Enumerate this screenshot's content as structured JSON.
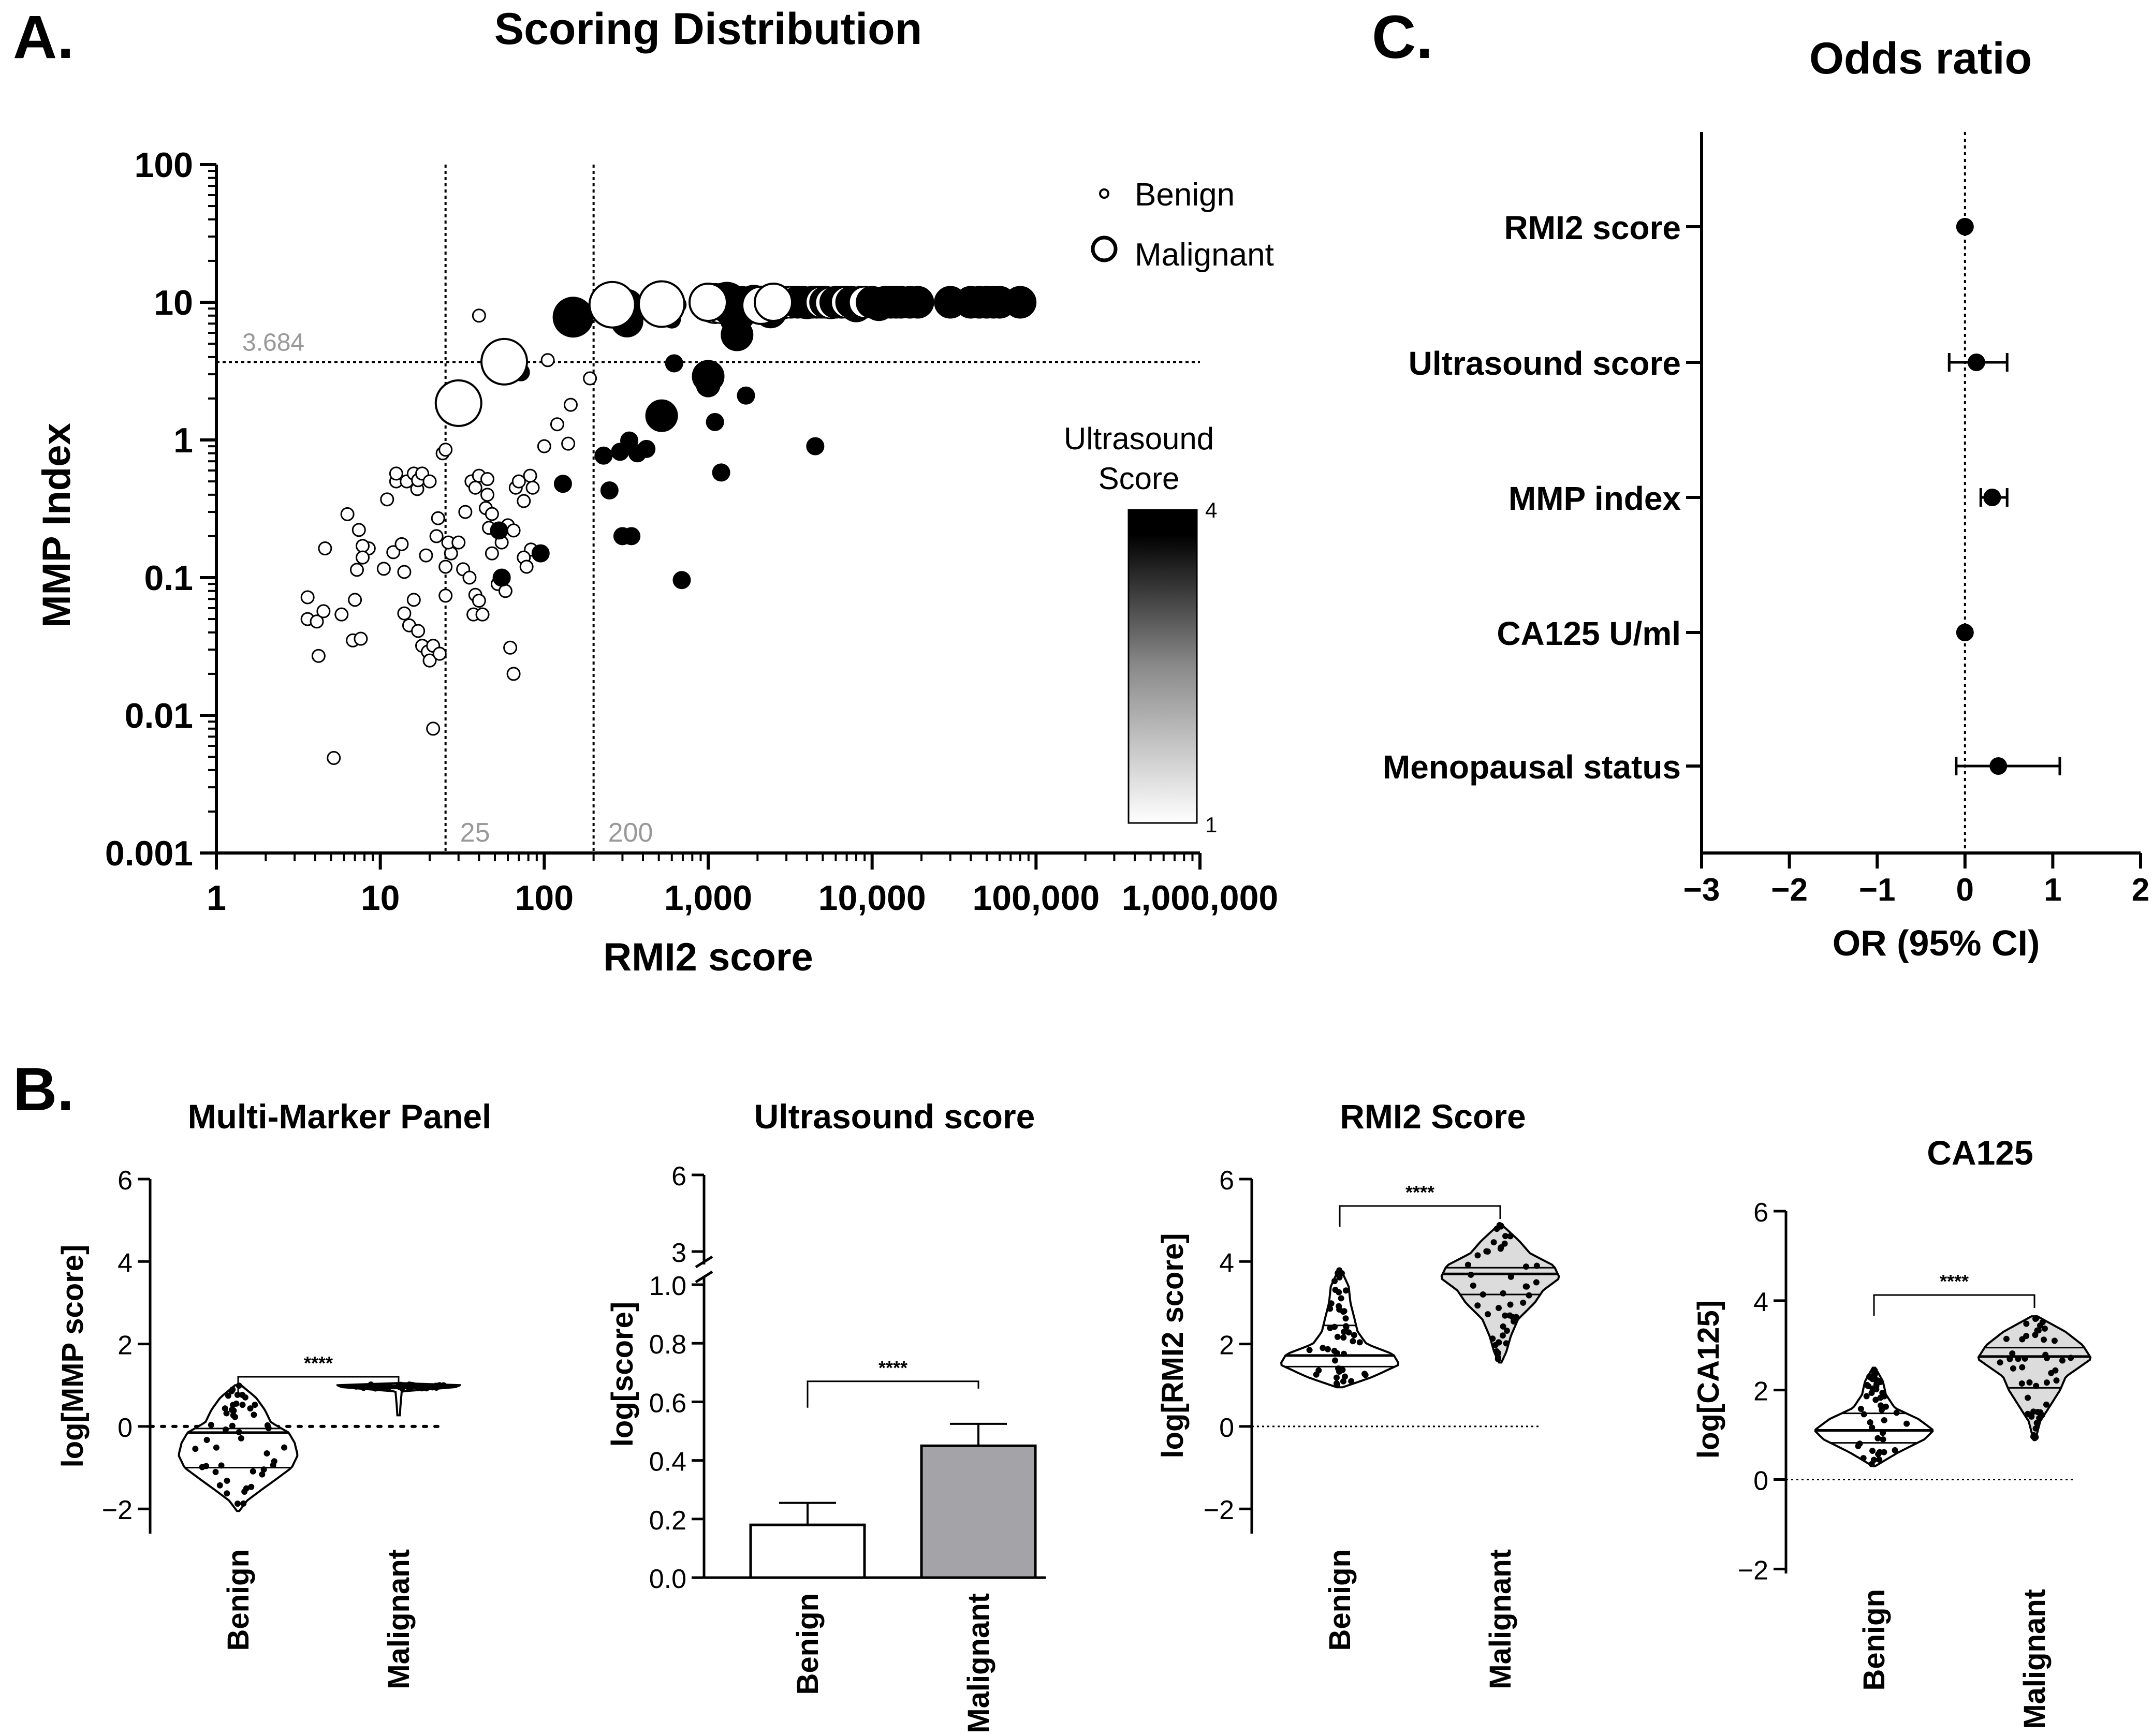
{
  "panel_letters": {
    "a": "A.",
    "b": "B.",
    "c": "C."
  },
  "chart_data": [
    {
      "id": "scatter",
      "type": "scatter",
      "title": "Scoring Distribution",
      "xlabel": "RMI2 score",
      "ylabel": "MMP Index",
      "xscale": "log",
      "yscale": "log",
      "xlim": [
        1,
        1000000
      ],
      "ylim": [
        0.001,
        100
      ],
      "xticks": [
        {
          "v": 1,
          "label": "1"
        },
        {
          "v": 10,
          "label": "10"
        },
        {
          "v": 100,
          "label": "100"
        },
        {
          "v": 1000,
          "label": "1,000"
        },
        {
          "v": 10000,
          "label": "10,000"
        },
        {
          "v": 100000,
          "label": "100,000"
        },
        {
          "v": 1000000,
          "label": "1,000,000"
        }
      ],
      "yticks": [
        {
          "v": 100,
          "label": "100"
        },
        {
          "v": 10,
          "label": "10"
        },
        {
          "v": 1,
          "label": "1"
        },
        {
          "v": 0.1,
          "label": "0.1"
        },
        {
          "v": 0.01,
          "label": "0.01"
        },
        {
          "v": 0.001,
          "label": "0.001"
        }
      ],
      "threshold_lines": [
        {
          "axis": "y",
          "value": 3.684,
          "label": "3.684"
        },
        {
          "axis": "x",
          "value": 25,
          "label": "25"
        },
        {
          "axis": "x",
          "value": 200,
          "label": "200"
        }
      ],
      "legend": {
        "placement": "top-right",
        "items": [
          {
            "label": "Benign",
            "kind": "small"
          },
          {
            "label": "Malignant",
            "kind": "large"
          }
        ]
      },
      "colorbar": {
        "title_line1": "Ultrasound",
        "title_line2": "Score",
        "min_label": "1",
        "max_label": "4",
        "placement": "right"
      },
      "benign": [
        [
          5.2,
          0.0049
        ],
        [
          4.2,
          0.027
        ],
        [
          3.6,
          0.05
        ],
        [
          4.1,
          0.048
        ],
        [
          3.6,
          0.072
        ],
        [
          4.5,
          0.057
        ],
        [
          5.8,
          0.054
        ],
        [
          4.6,
          0.163
        ],
        [
          6.8,
          0.035
        ],
        [
          7.6,
          0.036
        ],
        [
          7,
          0.069
        ],
        [
          7.2,
          0.114
        ],
        [
          8.5,
          0.163
        ],
        [
          7.8,
          0.17
        ],
        [
          7.8,
          0.14
        ],
        [
          7.4,
          0.222
        ],
        [
          6.3,
          0.289
        ],
        [
          10.5,
          0.116
        ],
        [
          12,
          0.153
        ],
        [
          13.5,
          0.175
        ],
        [
          14,
          0.11
        ],
        [
          14,
          0.055
        ],
        [
          15,
          0.045
        ],
        [
          12.5,
          0.5
        ],
        [
          11,
          0.37
        ],
        [
          12.5,
          0.57
        ],
        [
          14.5,
          0.5
        ],
        [
          16,
          0.57
        ],
        [
          16.8,
          0.44
        ],
        [
          17,
          0.51
        ],
        [
          18,
          0.57
        ],
        [
          20,
          0.5
        ],
        [
          22,
          0.2
        ],
        [
          19,
          0.145
        ],
        [
          16,
          0.069
        ],
        [
          17,
          0.041
        ],
        [
          18,
          0.032
        ],
        [
          19.5,
          0.029
        ],
        [
          21,
          0.032
        ],
        [
          20,
          0.025
        ],
        [
          21,
          0.008
        ],
        [
          23,
          0.028
        ],
        [
          25,
          0.074
        ],
        [
          25,
          0.12
        ],
        [
          27,
          0.15
        ],
        [
          24,
          0.8
        ],
        [
          25,
          0.85
        ],
        [
          22.5,
          0.27
        ],
        [
          26,
          0.18
        ],
        [
          30,
          0.18
        ],
        [
          32,
          0.115
        ],
        [
          35,
          0.1
        ],
        [
          38,
          0.075
        ],
        [
          40,
          0.068
        ],
        [
          37,
          0.054
        ],
        [
          42,
          0.054
        ],
        [
          36,
          0.5
        ],
        [
          40,
          0.55
        ],
        [
          38,
          0.45
        ],
        [
          45,
          0.4
        ],
        [
          44,
          0.32
        ],
        [
          48,
          0.29
        ],
        [
          33,
          0.3
        ],
        [
          46,
          0.23
        ],
        [
          48,
          0.15
        ],
        [
          52,
          0.09
        ],
        [
          55,
          0.18
        ],
        [
          60,
          0.24
        ],
        [
          58,
          0.08
        ],
        [
          62,
          0.031
        ],
        [
          65,
          0.02
        ],
        [
          67,
          0.45
        ],
        [
          70,
          0.5
        ],
        [
          75,
          0.36
        ],
        [
          82,
          0.55
        ],
        [
          83,
          0.16
        ],
        [
          75,
          0.14
        ],
        [
          78,
          0.12
        ],
        [
          85,
          0.45
        ],
        [
          100,
          0.9
        ],
        [
          140,
          0.94
        ],
        [
          145,
          1.8
        ],
        [
          120,
          1.3
        ],
        [
          105,
          3.8
        ],
        [
          190,
          2.8
        ],
        [
          40,
          8
        ],
        [
          65,
          0.22
        ],
        [
          45,
          0.52
        ]
      ],
      "malignant": [
        [
          150,
          7.8,
          4,
          4
        ],
        [
          250,
          9.3,
          1,
          4
        ],
        [
          320,
          9.5,
          4,
          3
        ],
        [
          320,
          7.3,
          4,
          3
        ],
        [
          500,
          9.5,
          1,
          3
        ],
        [
          600,
          7.5,
          4,
          1
        ],
        [
          1000,
          9.7,
          3,
          3
        ],
        [
          1100,
          9.8,
          1,
          4
        ],
        [
          1200,
          9.8,
          1,
          4
        ],
        [
          1300,
          10,
          4,
          4
        ],
        [
          1400,
          9.4,
          4,
          4
        ],
        [
          1500,
          5.8,
          4,
          3
        ],
        [
          1550,
          8.2,
          4,
          3
        ],
        [
          1600,
          10,
          4,
          3
        ],
        [
          1700,
          9.6,
          4,
          3
        ],
        [
          1800,
          10,
          4,
          3
        ],
        [
          1900,
          10.2,
          4,
          3
        ],
        [
          2000,
          9.7,
          4,
          3
        ],
        [
          2200,
          10,
          4,
          3
        ],
        [
          2400,
          8.5,
          4,
          3
        ],
        [
          2600,
          10,
          1,
          3
        ],
        [
          2700,
          10,
          4,
          3
        ],
        [
          2800,
          9.8,
          1,
          3
        ],
        [
          3000,
          10,
          4,
          3
        ],
        [
          3200,
          10,
          1,
          3
        ],
        [
          3500,
          10,
          4,
          3
        ],
        [
          3800,
          10,
          4,
          3
        ],
        [
          4000,
          9.9,
          4,
          3
        ],
        [
          4300,
          10,
          4,
          3
        ],
        [
          4600,
          10,
          4,
          3
        ],
        [
          4900,
          10,
          1,
          3
        ],
        [
          5200,
          10,
          4,
          3
        ],
        [
          5600,
          9.9,
          1,
          3
        ],
        [
          6000,
          10,
          4,
          3
        ],
        [
          6500,
          10,
          4,
          3
        ],
        [
          7000,
          10,
          1,
          3
        ],
        [
          7500,
          10,
          4,
          3
        ],
        [
          8000,
          9.4,
          4,
          3
        ],
        [
          8500,
          10,
          4,
          3
        ],
        [
          9000,
          10,
          1,
          3
        ],
        [
          10000,
          10,
          4,
          3
        ],
        [
          11000,
          9.6,
          4,
          3
        ],
        [
          12000,
          10,
          4,
          3
        ],
        [
          13000,
          10,
          4,
          3
        ],
        [
          14000,
          10,
          4,
          3
        ],
        [
          15000,
          10,
          4,
          3
        ],
        [
          17000,
          10,
          4,
          3
        ],
        [
          19000,
          10,
          4,
          3
        ],
        [
          30000,
          10,
          4,
          3
        ],
        [
          40000,
          10,
          4,
          3
        ],
        [
          45000,
          10,
          4,
          3
        ],
        [
          50000,
          10,
          4,
          3
        ],
        [
          55000,
          10,
          4,
          3
        ],
        [
          60000,
          10,
          4,
          3
        ],
        [
          80000,
          10,
          4,
          3
        ],
        [
          1000,
          2.9,
          4,
          3
        ],
        [
          520,
          1.5,
          4,
          3
        ],
        [
          1000,
          2.5,
          4,
          2
        ],
        [
          290,
          0.82,
          4,
          1
        ],
        [
          330,
          0.99,
          4,
          1
        ],
        [
          370,
          0.8,
          4,
          1
        ],
        [
          420,
          0.86,
          4,
          1
        ],
        [
          230,
          0.77,
          4,
          1
        ],
        [
          250,
          0.43,
          4,
          1
        ],
        [
          300,
          0.2,
          4,
          1
        ],
        [
          340,
          0.2,
          4,
          1
        ],
        [
          620,
          3.6,
          4,
          1
        ],
        [
          1100,
          1.35,
          4,
          1
        ],
        [
          1700,
          2.1,
          4,
          1
        ],
        [
          1200,
          0.58,
          4,
          1
        ],
        [
          4500,
          0.9,
          4,
          1
        ],
        [
          690,
          0.096,
          4,
          1
        ],
        [
          130,
          0.48,
          4,
          1
        ],
        [
          95,
          0.15,
          4,
          1
        ],
        [
          55,
          0.1,
          4,
          1
        ],
        [
          53,
          0.22,
          4,
          1
        ],
        [
          72,
          3.1,
          4,
          1
        ],
        [
          650,
          9.6,
          4,
          1
        ],
        [
          1350,
          7.2,
          4,
          1
        ],
        [
          950,
          9.2,
          4,
          2
        ]
      ],
      "malignant_white": [
        [
          57,
          3.7,
          1,
          4
        ],
        [
          1000,
          10,
          1,
          3
        ],
        [
          30,
          1.85,
          1,
          4
        ],
        [
          260,
          9.6,
          1,
          4
        ],
        [
          520,
          9.7,
          1,
          4
        ],
        [
          2100,
          9.5,
          1,
          3
        ],
        [
          2500,
          10,
          1,
          3
        ]
      ]
    },
    {
      "id": "forest",
      "type": "forest",
      "title": "Odds ratio",
      "xlabel": "OR (95% CI)",
      "xlim": [
        -3,
        2
      ],
      "xticks": [
        {
          "v": -3,
          "label": "−3"
        },
        {
          "v": -2,
          "label": "−2"
        },
        {
          "v": -1,
          "label": "−1"
        },
        {
          "v": 0,
          "label": "0"
        },
        {
          "v": 1,
          "label": "1"
        },
        {
          "v": 2,
          "label": "2"
        }
      ],
      "rows": [
        {
          "label": "RMI2 score",
          "or": 0.0,
          "lo": 0.0,
          "hi": 0.0
        },
        {
          "label": "Ultrasound score",
          "or": 0.13,
          "lo": -0.18,
          "hi": 0.48
        },
        {
          "label": "MMP index",
          "or": 0.31,
          "lo": 0.18,
          "hi": 0.48
        },
        {
          "label": "CA125 U/ml",
          "or": 0.0,
          "lo": 0.0,
          "hi": 0.0
        },
        {
          "label": "Menopausal status",
          "or": 0.38,
          "lo": -0.1,
          "hi": 1.08
        }
      ]
    },
    {
      "id": "mmp-violin",
      "type": "violin",
      "title": "Multi-Marker Panel",
      "ylabel": "log[MMP score]",
      "ylim": [
        -2.6,
        6
      ],
      "yticks": [
        {
          "v": 6,
          "label": "6"
        },
        {
          "v": 4,
          "label": "4"
        },
        {
          "v": 2,
          "label": "2"
        },
        {
          "v": 0,
          "label": "0"
        },
        {
          "v": -2,
          "label": "−2"
        }
      ],
      "zero_line": "dotted-bold",
      "significance": "****",
      "groups": [
        {
          "label": "Benign",
          "fill": "#ffffff",
          "median": -0.15,
          "q1": -1.0,
          "q3": -0.05,
          "min": -2.05,
          "max": 1.0,
          "shape": "benign_mmp"
        },
        {
          "label": "Malignant",
          "fill": "#ffffff",
          "median": 0.97,
          "q1": 0.92,
          "q3": 1.0,
          "min": 0.27,
          "max": 1.05,
          "shape": "flat"
        }
      ]
    },
    {
      "id": "us-bar",
      "type": "bar",
      "title": "Ultrasound score",
      "ylabel": "log[score]",
      "axis_break": true,
      "lower_ylim": [
        0,
        1.0
      ],
      "upper_ylim": [
        3,
        6
      ],
      "yticks_lower": [
        {
          "v": 0.0,
          "label": "0.0"
        },
        {
          "v": 0.2,
          "label": "0.2"
        },
        {
          "v": 0.4,
          "label": "0.4"
        },
        {
          "v": 0.6,
          "label": "0.6"
        },
        {
          "v": 0.8,
          "label": "0.8"
        },
        {
          "v": 1.0,
          "label": "1.0"
        }
      ],
      "yticks_upper": [
        {
          "v": 3,
          "label": "3"
        },
        {
          "v": 6,
          "label": "6"
        }
      ],
      "significance": "****",
      "categories": [
        "Benign",
        "Malignant"
      ],
      "values": [
        0.18,
        0.45
      ],
      "errors": [
        0.075,
        0.075
      ],
      "colors": [
        "#ffffff",
        "#a3a3a8"
      ]
    },
    {
      "id": "rmi-violin",
      "type": "violin",
      "title": "RMI2 Score",
      "ylabel": "log[RMI2 score]",
      "ylim": [
        -2.6,
        6
      ],
      "yticks": [
        {
          "v": 6,
          "label": "6"
        },
        {
          "v": 4,
          "label": "4"
        },
        {
          "v": 2,
          "label": "2"
        },
        {
          "v": 0,
          "label": "0"
        },
        {
          "v": -2,
          "label": "−2"
        }
      ],
      "zero_line": "dotted-thin",
      "significance": "****",
      "groups": [
        {
          "label": "Benign",
          "fill": "#ffffff",
          "median": 1.72,
          "q1": 1.45,
          "q3": 2.45,
          "min": 0.95,
          "max": 3.8,
          "shape": "benign_rmi"
        },
        {
          "label": "Malignant",
          "fill": "#dcdcdc",
          "median": 3.7,
          "q1": 3.2,
          "q3": 3.85,
          "min": 1.55,
          "max": 4.9,
          "shape": "malig_rmi"
        }
      ]
    },
    {
      "id": "ca-violin",
      "type": "violin",
      "title": "CA125",
      "ylabel": "log[CA125]",
      "ylim": [
        -2.1,
        6
      ],
      "yticks": [
        {
          "v": 6,
          "label": "6"
        },
        {
          "v": 4,
          "label": "4"
        },
        {
          "v": 2,
          "label": "2"
        },
        {
          "v": 0,
          "label": "0"
        },
        {
          "v": -2,
          "label": "−2"
        }
      ],
      "zero_line": "dotted-thin",
      "significance": "****",
      "groups": [
        {
          "label": "Benign",
          "fill": "#ffffff",
          "median": 1.1,
          "q1": 0.82,
          "q3": 1.48,
          "min": 0.3,
          "max": 2.5,
          "shape": "benign_ca"
        },
        {
          "label": "Malignant",
          "fill": "#dcdcdc",
          "median": 2.75,
          "q1": 2.05,
          "q3": 2.95,
          "min": 0.9,
          "max": 3.65,
          "shape": "malig_ca"
        }
      ]
    }
  ]
}
